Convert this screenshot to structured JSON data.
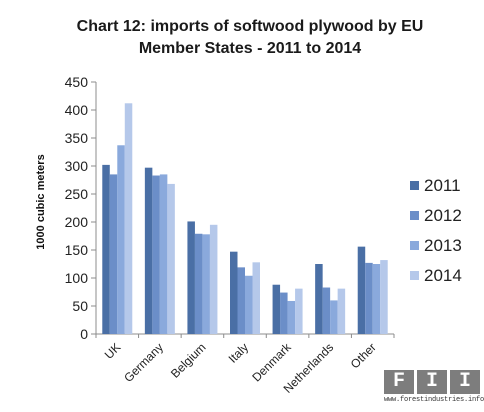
{
  "chart_data": {
    "type": "bar",
    "title_line1": "Chart 12: imports of softwood plywood by EU",
    "title_line2": "Member States - 2011 to 2014",
    "xlabel": "",
    "ylabel": "1000 cubic meters",
    "ylim": [
      0,
      450
    ],
    "yticks": [
      0,
      50,
      100,
      150,
      200,
      250,
      300,
      350,
      400,
      450
    ],
    "grid": false,
    "legend_position": "right",
    "categories": [
      "UK",
      "Germany",
      "Belgium",
      "Italy",
      "Denmark",
      "Netherlands",
      "Other"
    ],
    "series": [
      {
        "name": "2011",
        "color": "#4a6fa5",
        "values": [
          302,
          297,
          201,
          147,
          88,
          125,
          156
        ]
      },
      {
        "name": "2012",
        "color": "#6b8ec8",
        "values": [
          285,
          283,
          179,
          119,
          74,
          83,
          127
        ]
      },
      {
        "name": "2013",
        "color": "#8aa9dc",
        "values": [
          337,
          285,
          178,
          104,
          59,
          60,
          125
        ]
      },
      {
        "name": "2014",
        "color": "#b5c8ea",
        "values": [
          412,
          268,
          195,
          128,
          81,
          81,
          132
        ]
      }
    ]
  },
  "logo": {
    "letters": [
      "F",
      "I",
      "I"
    ],
    "url": "www.forestindustries.info"
  }
}
